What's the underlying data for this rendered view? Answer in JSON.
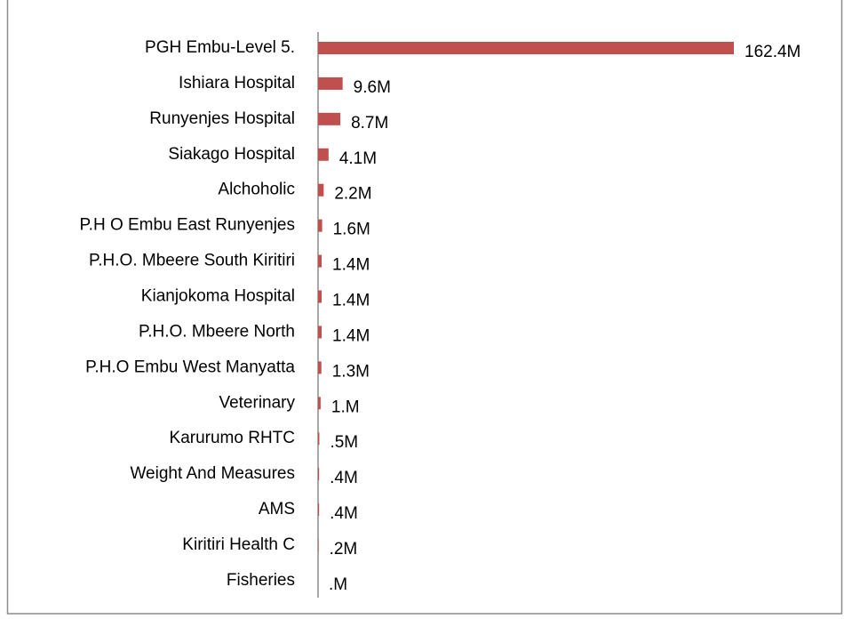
{
  "chart_data": {
    "type": "barh",
    "categories": [
      "PGH Embu-Level 5.",
      "Ishiara Hospital",
      "Runyenjes Hospital",
      "Siakago Hospital",
      "Alchoholic",
      "P.H O Embu East Runyenjes",
      "P.H.O. Mbeere South Kiritiri",
      "Kianjokoma Hospital",
      "P.H.O. Mbeere North",
      "P.H.O  Embu West Manyatta",
      "Veterinary",
      "Karurumo RHTC",
      "Weight And Measures",
      "AMS",
      "Kiritiri Health C",
      "Fisheries"
    ],
    "values": [
      162.4,
      9.6,
      8.7,
      4.1,
      2.2,
      1.6,
      1.4,
      1.4,
      1.4,
      1.3,
      1.0,
      0.5,
      0.4,
      0.4,
      0.2,
      0
    ],
    "value_labels": [
      "162.4M",
      "9.6M",
      "8.7M",
      "4.1M",
      "2.2M",
      "1.6M",
      "1.4M",
      "1.4M",
      "1.4M",
      "1.3M",
      "1.M",
      ".5M",
      ".4M",
      ".4M",
      ".2M",
      ".M"
    ],
    "color": "#c0504d"
  }
}
